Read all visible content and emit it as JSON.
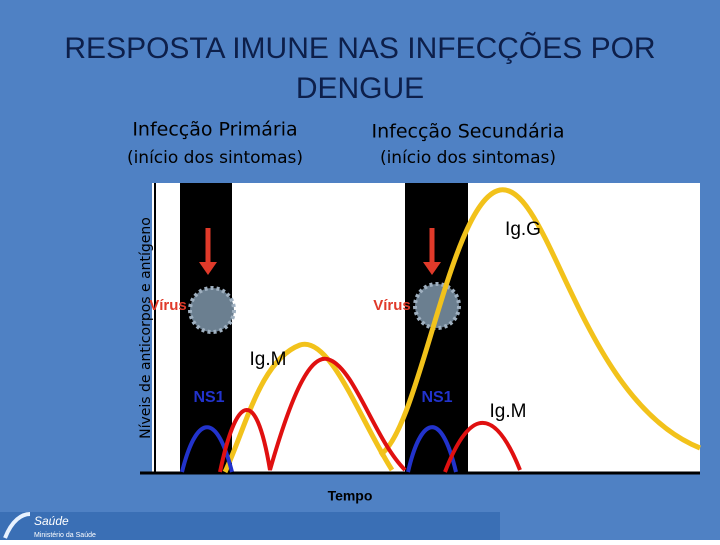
{
  "title": {
    "line1": "RESPOSTA IMUNE NAS INFECÇÕES POR",
    "line2": "DENGUE"
  },
  "primary": {
    "label": "Infecção Primária",
    "note": "(início dos sintomas)"
  },
  "secondary": {
    "label": "Infecção Secundária",
    "note": "(início dos sintomas)"
  },
  "y_axis_label": "Níveis de anticorpos e antígeno",
  "x_axis_label": "Tempo",
  "curve_labels": {
    "virus_primary": "Vírus",
    "virus_secondary": "Vírus",
    "ns1_primary": "NS1",
    "ns1_secondary": "NS1",
    "igm_primary": "Ig.M",
    "igg_secondary": "Ig.G",
    "igm_secondary": "Ig.M"
  },
  "logo": {
    "name": "Saúde",
    "org": "Ministério da Saúde"
  }
}
